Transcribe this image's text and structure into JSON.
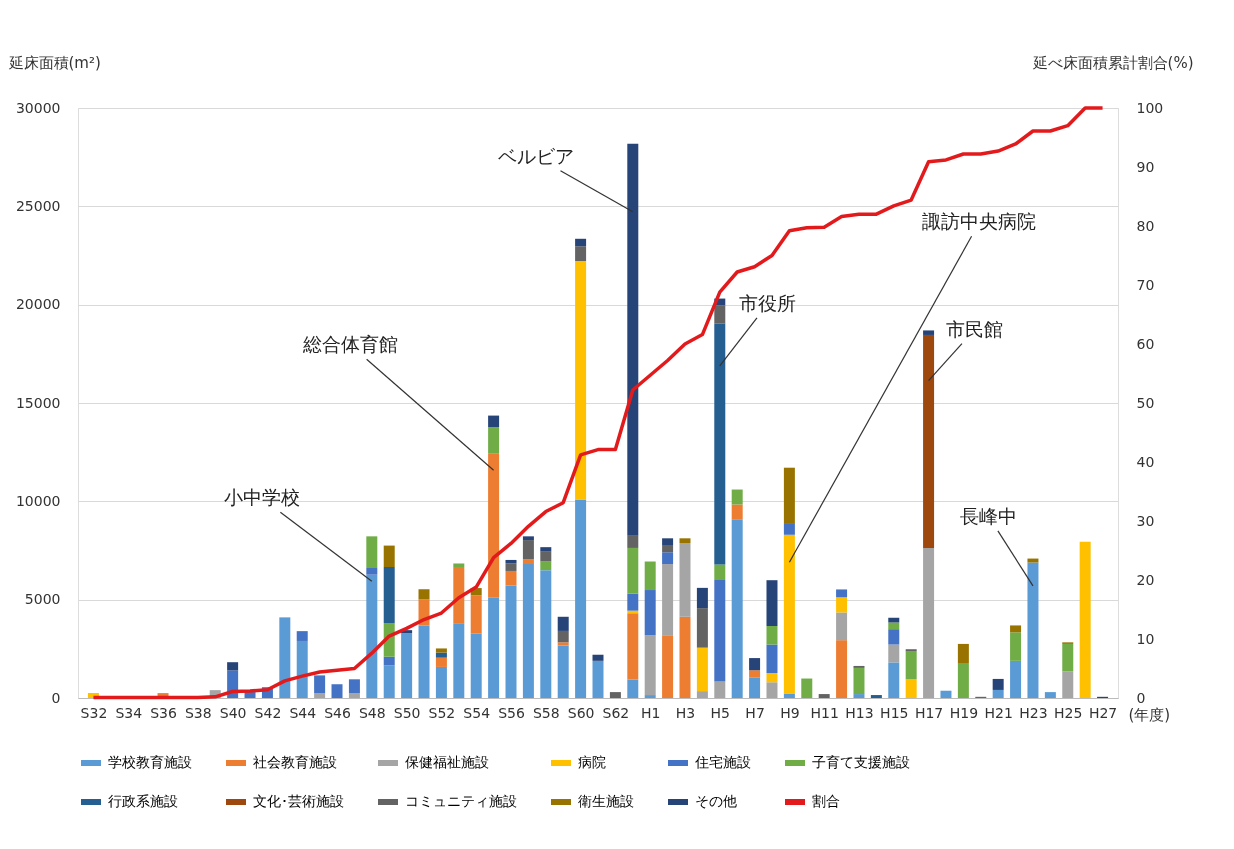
{
  "chart_data": {
    "type": "bar",
    "stacked": true,
    "xlabel": "(年度)",
    "ylabel": "延床面積(m²)",
    "y2label": "延べ床面積累計割合(%)",
    "categories": [
      "S32",
      null,
      "S34",
      null,
      "S36",
      null,
      "S38",
      null,
      "S40",
      null,
      "S42",
      null,
      "S44",
      null,
      "S46",
      null,
      "S48",
      null,
      "S50",
      null,
      "S52",
      null,
      "S54",
      null,
      "S56",
      null,
      "S58",
      null,
      "S60",
      null,
      "S62",
      null,
      "H1",
      null,
      "H3",
      null,
      "H5",
      null,
      "H7",
      null,
      "H9",
      null,
      "H11",
      null,
      "H13",
      null,
      "H15",
      null,
      "H17",
      null,
      "H19",
      null,
      "H21",
      null,
      "H23",
      null,
      "H25",
      null,
      "H27"
    ],
    "ylim": [
      0,
      30000
    ],
    "yticks": [
      {
        "value": 0,
        "label": "0"
      },
      {
        "value": 5000,
        "label": "5000"
      },
      {
        "value": 10000,
        "label": "10000"
      },
      {
        "value": 15000,
        "label": "15000"
      },
      {
        "value": 20000,
        "label": "20000"
      },
      {
        "value": 25000,
        "label": "25000"
      },
      {
        "value": 30000,
        "label": "30000"
      }
    ],
    "y2lim": [
      0,
      100
    ],
    "y2ticks": [
      0,
      10,
      20,
      30,
      40,
      50,
      60,
      70,
      80,
      90,
      100
    ],
    "grid": "y",
    "legend": "bottom",
    "series": [
      {
        "name": "学校教育施設",
        "color": "#5b9bd5",
        "values": [
          null,
          null,
          null,
          null,
          null,
          null,
          null,
          null,
          null,
          null,
          null,
          4100,
          2900,
          null,
          null,
          null,
          6270,
          1660,
          3300,
          3690,
          1580,
          3770,
          3270,
          5100,
          5720,
          6810,
          6500,
          2670,
          10090,
          1890,
          null,
          940,
          150,
          null,
          null,
          null,
          null,
          9090,
          1030,
          null,
          230,
          null,
          null,
          null,
          200,
          null,
          1810,
          null,
          null,
          370,
          null,
          null,
          410,
          1890,
          6890,
          300,
          null,
          null,
          null
        ]
      },
      {
        "name": "社会教育施設",
        "color": "#ed7d31",
        "values": [
          null,
          null,
          null,
          null,
          250,
          null,
          null,
          null,
          null,
          null,
          null,
          null,
          null,
          null,
          null,
          null,
          null,
          null,
          null,
          1320,
          470,
          2890,
          1950,
          7340,
          740,
          240,
          null,
          160,
          null,
          null,
          null,
          3370,
          null,
          3190,
          4130,
          null,
          null,
          750,
          380,
          null,
          null,
          null,
          null,
          2940,
          null,
          null,
          null,
          null,
          null,
          null,
          null,
          null,
          null,
          null,
          null,
          null,
          null,
          null,
          null
        ]
      },
      {
        "name": "保健福祉施設",
        "color": "#a5a5a5",
        "values": [
          null,
          null,
          null,
          null,
          null,
          null,
          null,
          400,
          null,
          null,
          null,
          null,
          null,
          250,
          null,
          250,
          null,
          null,
          null,
          null,
          null,
          null,
          null,
          null,
          null,
          null,
          null,
          null,
          null,
          null,
          null,
          null,
          3040,
          3620,
          3750,
          350,
          840,
          null,
          null,
          800,
          null,
          null,
          null,
          1410,
          null,
          null,
          910,
          null,
          7630,
          null,
          null,
          null,
          null,
          null,
          null,
          null,
          1360,
          null,
          null
        ]
      },
      {
        "name": "病院",
        "color": "#ffc000",
        "values": [
          250,
          null,
          null,
          null,
          null,
          null,
          null,
          null,
          null,
          null,
          null,
          null,
          null,
          null,
          null,
          null,
          null,
          null,
          null,
          null,
          null,
          null,
          null,
          null,
          null,
          null,
          null,
          null,
          12130,
          null,
          null,
          130,
          null,
          null,
          null,
          2210,
          null,
          null,
          null,
          470,
          8070,
          null,
          null,
          770,
          null,
          null,
          null,
          950,
          null,
          null,
          null,
          null,
          null,
          null,
          null,
          null,
          null,
          7940,
          null
        ]
      },
      {
        "name": "住宅施設",
        "color": "#4472c4",
        "values": [
          null,
          null,
          null,
          null,
          null,
          null,
          null,
          null,
          1400,
          400,
          550,
          null,
          500,
          900,
          700,
          700,
          340,
          440,
          null,
          null,
          null,
          null,
          null,
          null,
          null,
          null,
          null,
          null,
          null,
          null,
          null,
          870,
          2300,
          600,
          null,
          null,
          5160,
          null,
          null,
          1450,
          550,
          null,
          null,
          400,
          null,
          null,
          780,
          null,
          null,
          null,
          null,
          null,
          null,
          null,
          null,
          null,
          null,
          null,
          null
        ]
      },
      {
        "name": "子育て支援施設",
        "color": "#70ad47",
        "values": [
          null,
          null,
          null,
          null,
          null,
          null,
          null,
          null,
          null,
          null,
          null,
          null,
          null,
          null,
          null,
          null,
          1610,
          1710,
          null,
          null,
          null,
          180,
          null,
          1330,
          null,
          null,
          440,
          null,
          null,
          null,
          null,
          2320,
          1450,
          null,
          null,
          null,
          790,
          760,
          null,
          940,
          null,
          990,
          null,
          null,
          1330,
          null,
          340,
          1410,
          null,
          null,
          1780,
          null,
          null,
          1450,
          null,
          null,
          1390,
          null,
          null
        ]
      },
      {
        "name": "行政系施設",
        "color": "#255e91",
        "values": [
          null,
          null,
          null,
          null,
          null,
          null,
          null,
          null,
          null,
          null,
          null,
          null,
          null,
          null,
          null,
          null,
          null,
          2850,
          null,
          null,
          260,
          null,
          null,
          null,
          null,
          null,
          null,
          null,
          null,
          null,
          null,
          null,
          null,
          null,
          null,
          null,
          12240,
          null,
          null,
          null,
          null,
          null,
          null,
          null,
          null,
          150,
          null,
          null,
          null,
          null,
          null,
          null,
          null,
          null,
          null,
          null,
          null,
          null,
          null
        ]
      },
      {
        "name": "文化･芸術施設",
        "color": "#9e480e",
        "values": [
          null,
          null,
          null,
          null,
          null,
          null,
          null,
          null,
          null,
          null,
          null,
          null,
          null,
          null,
          null,
          null,
          null,
          null,
          null,
          null,
          null,
          null,
          null,
          null,
          null,
          null,
          null,
          null,
          null,
          null,
          null,
          null,
          null,
          null,
          null,
          null,
          null,
          null,
          null,
          null,
          null,
          null,
          null,
          null,
          null,
          null,
          null,
          null,
          10830,
          null,
          null,
          null,
          null,
          null,
          null,
          null,
          null,
          null,
          null
        ]
      },
      {
        "name": "コミュニティ施設",
        "color": "#636363",
        "values": [
          null,
          null,
          null,
          null,
          null,
          null,
          null,
          null,
          null,
          null,
          null,
          null,
          null,
          null,
          null,
          null,
          null,
          null,
          null,
          null,
          null,
          null,
          null,
          null,
          390,
          980,
          500,
          580,
          750,
          null,
          300,
          620,
          null,
          370,
          null,
          2010,
          940,
          null,
          null,
          null,
          null,
          null,
          200,
          null,
          100,
          null,
          null,
          120,
          null,
          null,
          null,
          60,
          null,
          null,
          null,
          null,
          null,
          null,
          null
        ]
      },
      {
        "name": "衛生施設",
        "color": "#997300",
        "values": [
          null,
          null,
          null,
          null,
          null,
          null,
          null,
          null,
          null,
          null,
          null,
          null,
          null,
          null,
          null,
          null,
          null,
          1090,
          null,
          520,
          210,
          null,
          370,
          null,
          null,
          null,
          null,
          null,
          null,
          null,
          null,
          null,
          null,
          null,
          240,
          null,
          null,
          null,
          null,
          null,
          2860,
          null,
          null,
          null,
          null,
          null,
          null,
          null,
          null,
          null,
          970,
          null,
          null,
          350,
          200,
          null,
          80,
          null,
          null
        ]
      },
      {
        "name": "その他",
        "color": "#264478",
        "values": [
          null,
          null,
          null,
          null,
          null,
          null,
          null,
          null,
          420,
          null,
          null,
          null,
          null,
          null,
          null,
          null,
          null,
          null,
          150,
          null,
          null,
          null,
          null,
          590,
          170,
          190,
          230,
          720,
          380,
          310,
          null,
          19930,
          null,
          340,
          null,
          1030,
          340,
          null,
          620,
          2330,
          null,
          null,
          null,
          null,
          null,
          null,
          240,
          null,
          230,
          null,
          null,
          null,
          560,
          null,
          null,
          null,
          null,
          null,
          60
        ]
      },
      {
        "name": "割合",
        "color": "#e31a1c",
        "type": "line",
        "axis": "y2",
        "values": [
          0.1,
          0.1,
          0.1,
          0.1,
          0.1,
          0.1,
          0.1,
          0.2,
          1.1,
          1.2,
          1.4,
          2.9,
          3.7,
          4.4,
          4.7,
          5.0,
          7.6,
          10.5,
          11.8,
          13.3,
          14.4,
          17,
          18.8,
          23.8,
          26.2,
          29.1,
          31.6,
          33.1,
          41.2,
          42.1,
          42.1,
          52.2,
          54.7,
          57.2,
          60,
          61.6,
          68.8,
          72.2,
          73.1,
          75,
          79.2,
          79.7,
          79.8,
          81.6,
          82,
          82,
          83.4,
          84.4,
          90.9,
          91.2,
          92.2,
          92.2,
          92.7,
          93.9,
          96.1,
          96.1,
          97,
          100,
          100
        ]
      }
    ],
    "annotations": [
      "小中学校",
      "総合体育館",
      "ベルビア",
      "諏訪中央病院",
      "市役所",
      "市民館",
      "長峰中"
    ]
  }
}
